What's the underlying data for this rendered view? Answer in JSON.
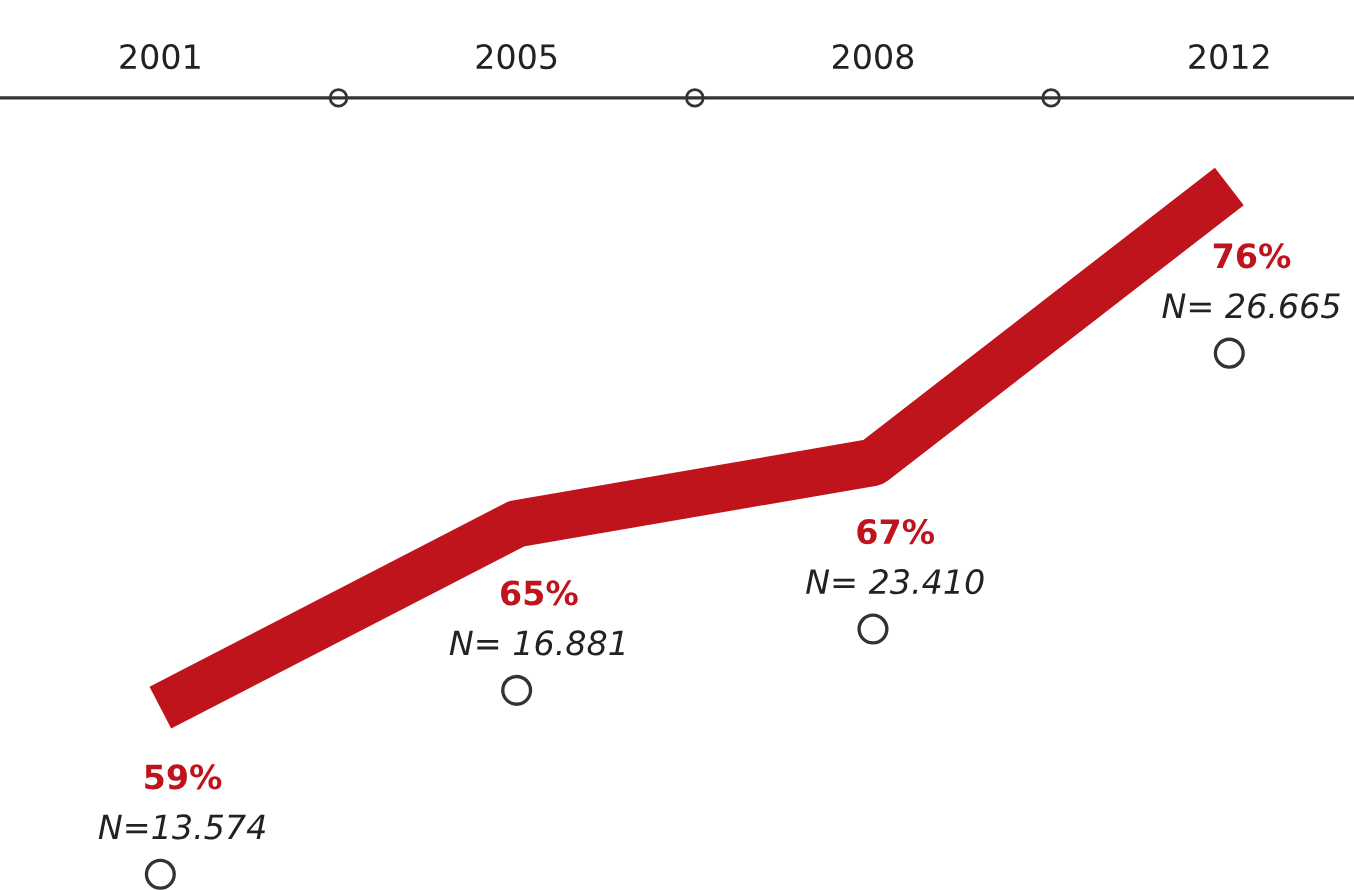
{
  "chart_data": {
    "type": "line",
    "categories": [
      "2001",
      "2005",
      "2008",
      "2012"
    ],
    "series": [
      {
        "color": "#c0141c",
        "values": [
          59,
          65,
          67,
          76
        ],
        "value_labels": [
          "59%",
          "65%",
          "67%",
          "76%"
        ]
      }
    ],
    "annotations": [
      "N=13.574",
      "N= 16.881",
      "N= 23.410",
      "N= 26.665"
    ],
    "tick_labels": "x",
    "grid": false
  }
}
